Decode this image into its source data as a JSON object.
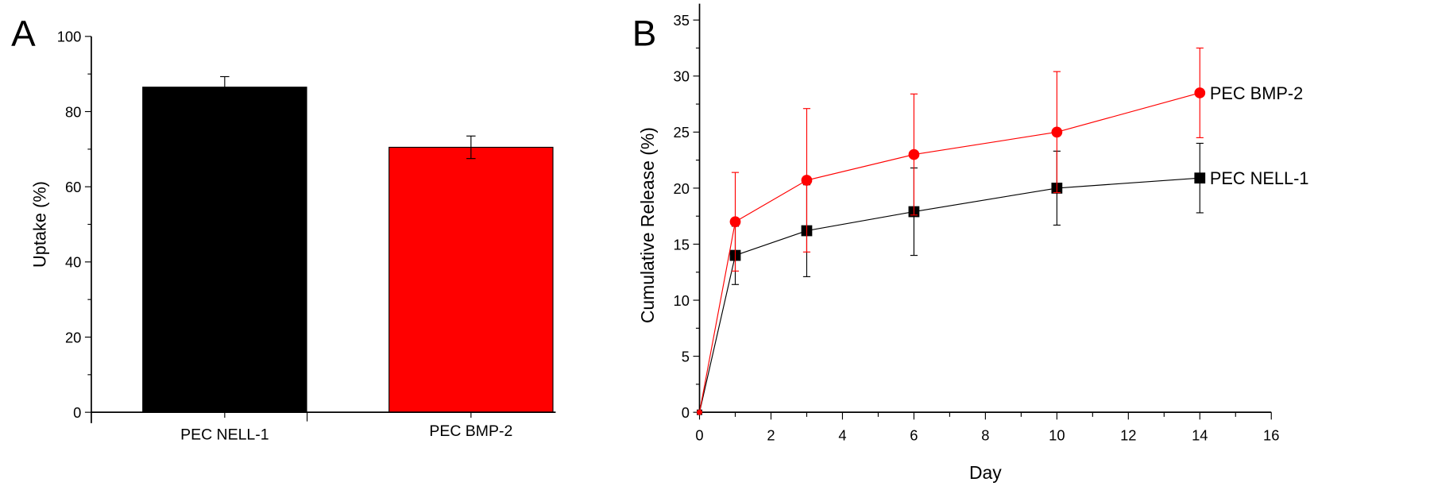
{
  "chart_data": [
    {
      "panel_label": "A",
      "type": "bar",
      "categories": [
        "PEC NELL-1",
        "PEC BMP-2"
      ],
      "values": [
        86.5,
        70.5
      ],
      "errors": [
        2.8,
        3.0
      ],
      "colors": [
        "#000000",
        "#ff0000"
      ],
      "xlabel": "",
      "ylabel": "Uptake (%)",
      "ylim": [
        0,
        100
      ],
      "yticks": [
        0,
        20,
        40,
        60,
        80,
        100
      ],
      "grid": false
    },
    {
      "panel_label": "B",
      "type": "line",
      "xlabel": "Day",
      "ylabel": "Cumulative Release (%)",
      "xlim": [
        0,
        16
      ],
      "ylim": [
        0,
        35
      ],
      "xticks": [
        0,
        2,
        4,
        6,
        8,
        10,
        12,
        14,
        16
      ],
      "yticks": [
        0,
        5,
        10,
        15,
        20,
        25,
        30,
        35
      ],
      "grid": false,
      "x": [
        0,
        1,
        3,
        6,
        10,
        14
      ],
      "series": [
        {
          "name": "PEC BMP-2",
          "color": "#ff0000",
          "marker": "circle",
          "values": [
            0,
            17,
            20.7,
            23,
            25,
            28.5
          ],
          "errors": [
            0,
            4.4,
            6.4,
            5.4,
            5.4,
            4.0
          ]
        },
        {
          "name": "PEC NELL-1",
          "color": "#000000",
          "marker": "square",
          "values": [
            0,
            14,
            16.2,
            17.9,
            20,
            20.9
          ],
          "errors": [
            0,
            2.6,
            4.1,
            3.9,
            3.3,
            3.1
          ]
        }
      ],
      "legend": "inline-labels-right"
    }
  ]
}
